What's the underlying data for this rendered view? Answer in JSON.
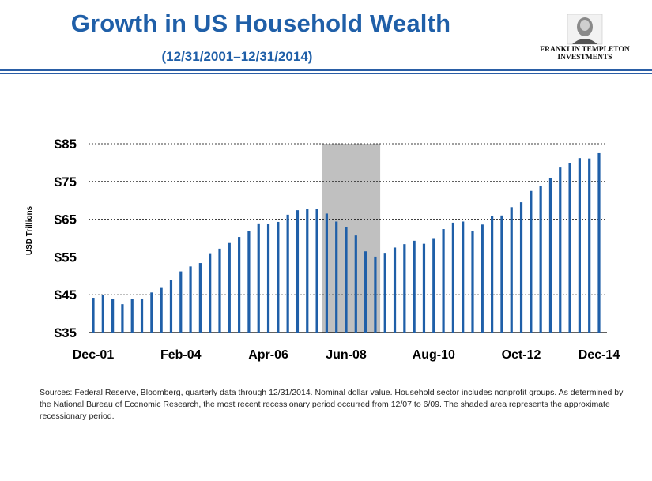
{
  "header": {
    "title": "Growth in US Household Wealth",
    "subtitle": "(12/31/2001–12/31/2014)",
    "logo_line1": "FRANKLIN TEMPLETON",
    "logo_line2": "INVESTMENTS"
  },
  "footnote": "Sources: Federal Reserve, Bloomberg, quarterly data through 12/31/2014. Nominal dollar value. Household sector includes nonprofit groups. As determined by the National Bureau of Economic Research, the most recent recessionary period occurred from 12/07 to 6/09. The shaded area represents the approximate recessionary period.",
  "colors": {
    "bar": "#1f5fa8",
    "shade": "#c0c0c0",
    "title": "#1f5fa8"
  },
  "chart_data": {
    "type": "bar",
    "ylabel": "USD Trillions",
    "ylim": [
      35,
      85
    ],
    "yticks": [
      "$35",
      "$45",
      "$55",
      "$65",
      "$75",
      "$85"
    ],
    "ytick_values": [
      35,
      45,
      55,
      65,
      75,
      85
    ],
    "grid": "dashed horizontal at each tick",
    "x_tick_labels": [
      "Dec-01",
      "Feb-04",
      "Apr-06",
      "Jun-08",
      "Aug-10",
      "Oct-12",
      "Dec-14"
    ],
    "x_tick_indices": [
      0,
      9,
      18,
      26,
      35,
      44,
      52
    ],
    "recession_shading": {
      "from_index": 24,
      "to_index": 30
    },
    "values": [
      44.2,
      45.0,
      43.8,
      42.5,
      43.8,
      44.0,
      45.6,
      46.8,
      49.0,
      51.2,
      52.5,
      53.4,
      56.0,
      57.2,
      58.7,
      60.3,
      61.9,
      63.9,
      63.8,
      64.3,
      66.2,
      67.4,
      67.8,
      67.7,
      66.5,
      64.4,
      62.9,
      60.7,
      56.5,
      55.1,
      56.1,
      57.5,
      58.4,
      59.3,
      58.5,
      60.0,
      62.4,
      64.1,
      64.4,
      61.8,
      63.6,
      65.9,
      66.0,
      68.2,
      69.5,
      72.5,
      73.8,
      76.0,
      78.7,
      79.9,
      81.2,
      81.1,
      82.5
    ]
  }
}
